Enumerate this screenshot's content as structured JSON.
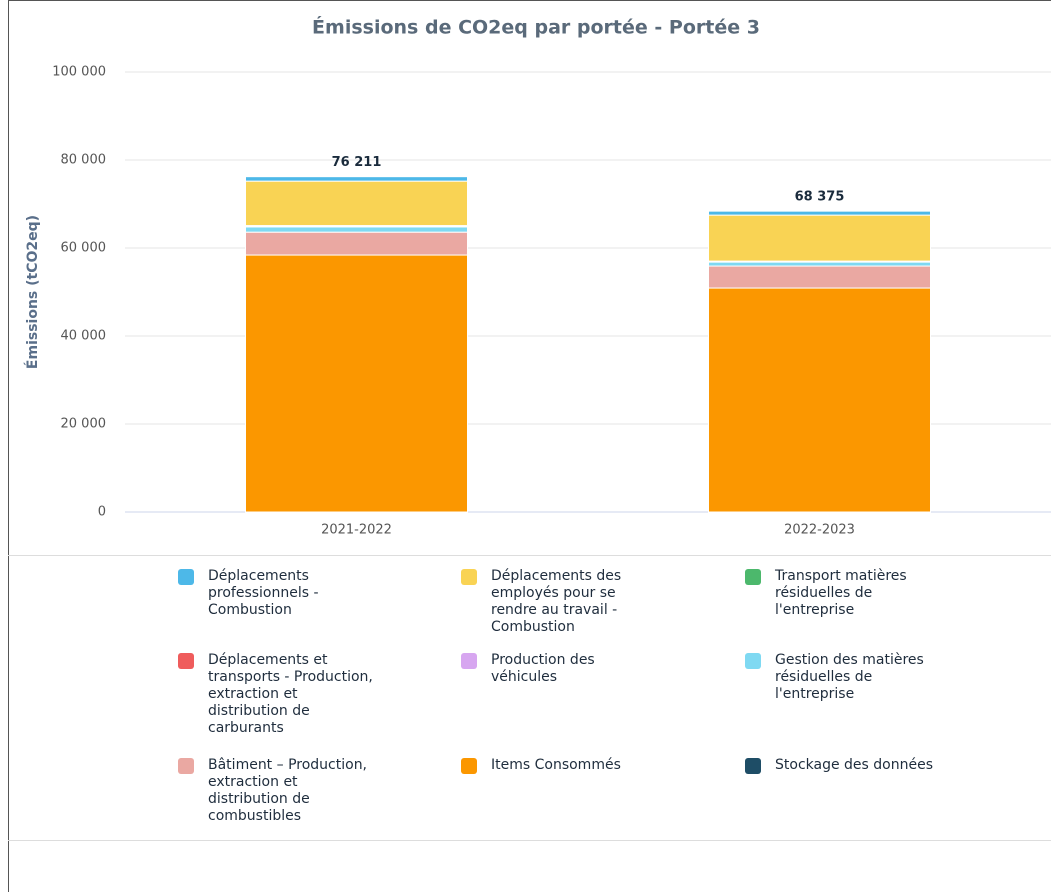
{
  "chart_data": {
    "type": "stacked_bar",
    "title": "Émissions de CO2eq par portée - Portée 3",
    "y_label": "Émissions (tCO2eq)",
    "categories": [
      "2021-2022",
      "2022-2023"
    ],
    "totals": [
      76211,
      68375
    ],
    "total_labels": [
      "76 211",
      "68 375"
    ],
    "ylim": [
      0,
      100000
    ],
    "yticks": [
      0,
      {
        "value": 20000,
        "label": "20 000"
      },
      {
        "value": 40000,
        "label": "40 000"
      },
      {
        "value": 60000,
        "label": "60 000"
      },
      {
        "value": 80000,
        "label": "80 000"
      },
      {
        "value": 100000,
        "label": "100 000"
      }
    ],
    "grid": true,
    "series": [
      {
        "name": "Déplacements professionnels - Combustion",
        "color": "#4db8e8",
        "values": [
          1011,
          900
        ]
      },
      {
        "name": "Déplacements des employés pour se rendre au travail - Combustion",
        "color": "#f9d354",
        "values": [
          10100,
          10450
        ]
      },
      {
        "name": "Transport matières résiduelles de l'entreprise",
        "color": "#4cb86c",
        "values": [
          100,
          75
        ]
      },
      {
        "name": "Déplacements et transports - Production, extraction et distribution de carburants",
        "color": "#ef5c5c",
        "values": [
          200,
          150
        ]
      },
      {
        "name": "Production des véhicules",
        "color": "#d7a6f0",
        "values": [
          0,
          0
        ]
      },
      {
        "name": "Gestion des matières résiduelles de l'entreprise",
        "color": "#7fd9f2",
        "values": [
          1200,
          900
        ]
      },
      {
        "name": "Bâtiment – Production, extraction et distribution de combustibles",
        "color": "#eaa8a2",
        "values": [
          5200,
          5000
        ]
      },
      {
        "name": "Items Consommés",
        "color": "#fb9700",
        "values": [
          58400,
          50900
        ]
      },
      {
        "name": "Stockage des données",
        "color": "#1e4d66",
        "values": [
          0,
          0
        ]
      }
    ]
  }
}
